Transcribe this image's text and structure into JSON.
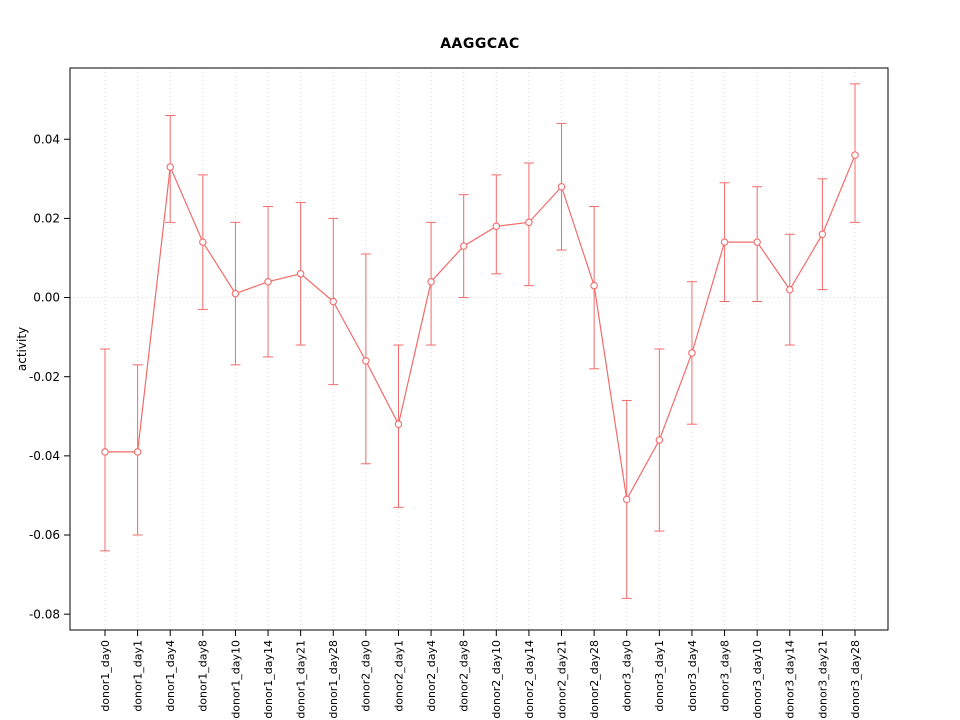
{
  "chart_data": {
    "type": "line",
    "title": "AAGGCAC",
    "xlabel": "",
    "ylabel": "activity",
    "categories": [
      "donor1_day0",
      "donor1_day1",
      "donor1_day4",
      "donor1_day8",
      "donor1_day10",
      "donor1_day14",
      "donor1_day21",
      "donor1_day28",
      "donor2_day0",
      "donor2_day1",
      "donor2_day4",
      "donor2_day8",
      "donor2_day10",
      "donor2_day14",
      "donor2_day21",
      "donor2_day28",
      "donor3_day0",
      "donor3_day1",
      "donor3_day4",
      "donor3_day8",
      "donor3_day10",
      "donor3_day14",
      "donor3_day21",
      "donor3_day28"
    ],
    "series": [
      {
        "name": "activity",
        "values": [
          -0.039,
          -0.039,
          0.033,
          0.014,
          0.001,
          0.004,
          0.006,
          -0.001,
          -0.016,
          -0.032,
          0.004,
          0.013,
          0.018,
          0.019,
          0.028,
          0.003,
          -0.051,
          -0.036,
          -0.014,
          0.014,
          0.014,
          0.002,
          0.016,
          0.036
        ],
        "error_low": [
          -0.064,
          -0.06,
          0.019,
          -0.003,
          -0.017,
          -0.015,
          -0.012,
          -0.022,
          -0.042,
          -0.053,
          -0.012,
          0.0,
          0.006,
          0.003,
          0.012,
          -0.018,
          -0.076,
          -0.059,
          -0.032,
          -0.001,
          -0.001,
          -0.012,
          0.002,
          0.019
        ],
        "error_high": [
          -0.013,
          -0.017,
          0.046,
          0.031,
          0.019,
          0.023,
          0.024,
          0.02,
          0.011,
          -0.012,
          0.019,
          0.026,
          0.031,
          0.034,
          0.044,
          0.023,
          -0.026,
          -0.013,
          0.004,
          0.029,
          0.028,
          0.016,
          0.03,
          0.054
        ]
      }
    ],
    "yticks": [
      -0.08,
      -0.06,
      -0.04,
      -0.02,
      0.0,
      0.02,
      0.04
    ],
    "ylim": [
      -0.084,
      0.058
    ],
    "marker": "open-circle",
    "grid": "dotted vertical line at each category, dotted horizontal line at y=0",
    "legend": "none",
    "colors": {
      "series": "#F26B6B",
      "marker_fill": "#ffffff",
      "grid": "#d9d9d9",
      "box": "#000000",
      "background": "#ffffff"
    }
  }
}
